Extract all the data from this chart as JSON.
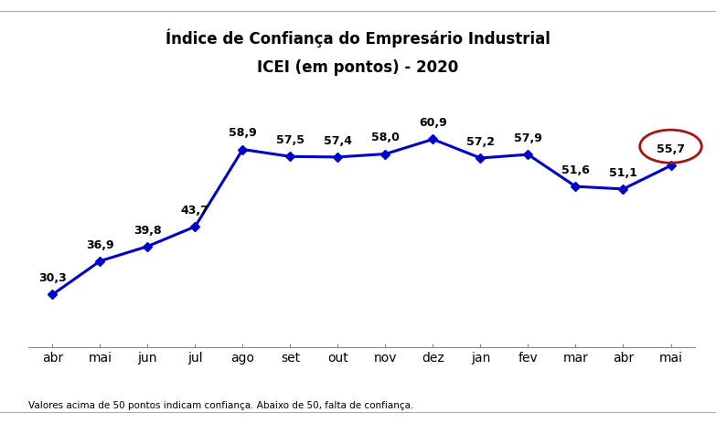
{
  "title_line1": "Índice de Confiança do Empresário Industrial",
  "title_line2": "ICEI (em pontos) - 2020",
  "categories": [
    "abr",
    "mai",
    "jun",
    "jul",
    "ago",
    "set",
    "out",
    "nov",
    "dez",
    "jan",
    "fev",
    "mar",
    "abr",
    "mai"
  ],
  "values": [
    30.3,
    36.9,
    39.8,
    43.7,
    58.9,
    57.5,
    57.4,
    58.0,
    60.9,
    57.2,
    57.9,
    51.6,
    51.1,
    55.7
  ],
  "line_color": "#0000CC",
  "marker_color": "#0000CC",
  "circle_color": "#AA1111",
  "footnote": "Valores acima de 50 pontos indicam confiança. Abaixo de 50, falta de confiança.",
  "background_color": "#FFFFFF",
  "ylim_min": 20,
  "ylim_max": 70
}
